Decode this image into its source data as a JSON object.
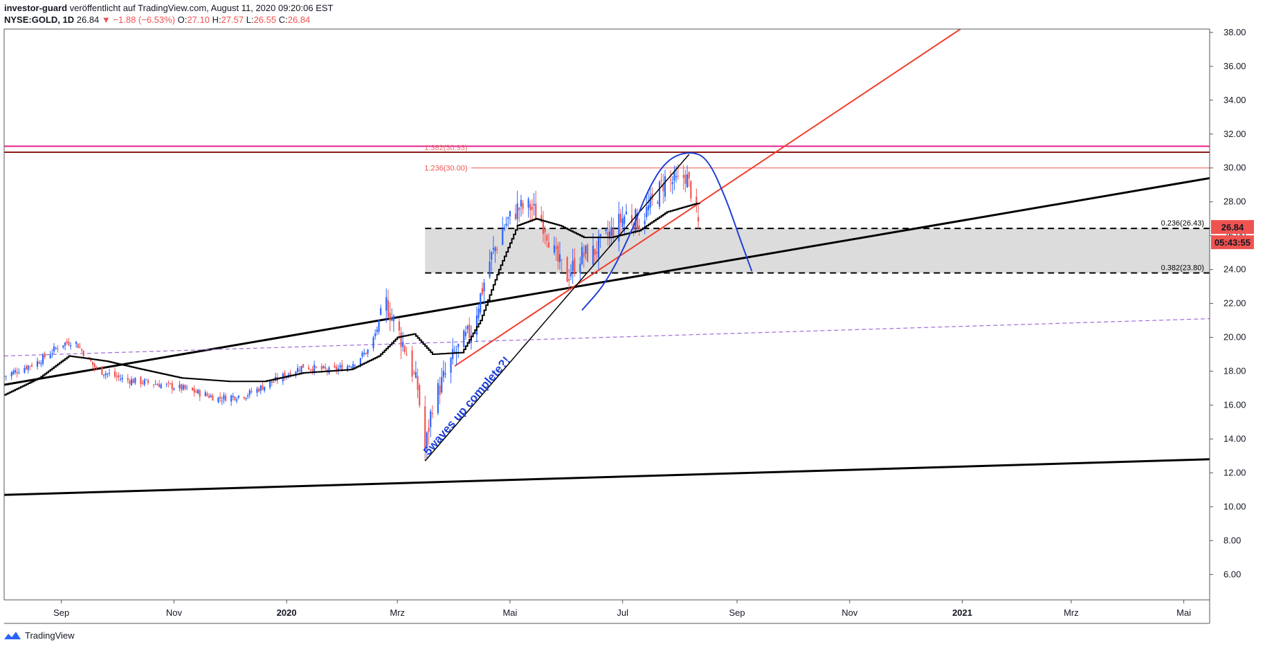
{
  "header": {
    "publisher": "investor-guard",
    "published_text": " veröffentlicht auf TradingView.com, August 11, 2020 09:20:06 EST",
    "symbol": "NYSE:GOLD, 1D",
    "last": "26.84",
    "change": "▼ −1.88 (−6.53%)",
    "o_label": "O:",
    "o_val": "27.10",
    "h_label": "H:",
    "h_val": "27.57",
    "l_label": "L:",
    "l_val": "26.55",
    "c_label": "C:",
    "c_val": "26.84"
  },
  "price_badge": "26.84",
  "countdown_badge": "05:43:55",
  "annotation_text": "5waves up complete?!",
  "footer_brand": "TradingView",
  "colors": {
    "up": "#2962ff",
    "down": "#ef5350",
    "trendline": "#f23b2c",
    "arc": "#1e3fd8",
    "magenta": "#e91e8c",
    "purple_dash": "#9c6bd8",
    "zone": "#dcdcdc"
  },
  "chart_data": {
    "type": "candlestick",
    "y_axis": {
      "min": 4.5,
      "max": 38.2,
      "ticks": [
        "38.00",
        "36.00",
        "34.00",
        "32.00",
        "30.00",
        "28.00",
        "26.00",
        "24.00",
        "22.00",
        "20.00",
        "18.00",
        "16.00",
        "14.00",
        "12.00",
        "10.00",
        "8.00",
        "6.00"
      ]
    },
    "x_axis": {
      "ticks": [
        {
          "label": "Sep",
          "date": "2019-09-01",
          "bold": false
        },
        {
          "label": "Nov",
          "date": "2019-11-01",
          "bold": false
        },
        {
          "label": "2020",
          "date": "2020-01-01",
          "bold": true
        },
        {
          "label": "Mrz",
          "date": "2020-03-01",
          "bold": false
        },
        {
          "label": "Mai",
          "date": "2020-05-01",
          "bold": false
        },
        {
          "label": "Jul",
          "date": "2020-07-01",
          "bold": false
        },
        {
          "label": "Sep",
          "date": "2020-09-01",
          "bold": false
        },
        {
          "label": "Nov",
          "date": "2020-11-01",
          "bold": false
        },
        {
          "label": "2021",
          "date": "2021-01-01",
          "bold": true
        },
        {
          "label": "Mrz",
          "date": "2021-03-01",
          "bold": false
        },
        {
          "label": "Mai",
          "date": "2021-05-01",
          "bold": false
        }
      ]
    },
    "price_path": [
      [
        "2019-08-01",
        17.7
      ],
      [
        "2019-08-20",
        18.6
      ],
      [
        "2019-09-01",
        19.6
      ],
      [
        "2019-09-08",
        19.8
      ],
      [
        "2019-09-20",
        18.1
      ],
      [
        "2019-10-05",
        17.5
      ],
      [
        "2019-10-20",
        17.3
      ],
      [
        "2019-11-05",
        17.0
      ],
      [
        "2019-11-25",
        16.4
      ],
      [
        "2019-12-10",
        16.6
      ],
      [
        "2019-12-25",
        17.4
      ],
      [
        "2020-01-10",
        18.3
      ],
      [
        "2020-01-25",
        18.0
      ],
      [
        "2020-02-05",
        18.4
      ],
      [
        "2020-02-15",
        19.3
      ],
      [
        "2020-02-24",
        22.0
      ],
      [
        "2020-03-05",
        19.4
      ],
      [
        "2020-03-12",
        17.0
      ],
      [
        "2020-03-16",
        13.3
      ],
      [
        "2020-03-20",
        16.1
      ],
      [
        "2020-04-01",
        19.0
      ],
      [
        "2020-04-10",
        20.4
      ],
      [
        "2020-04-20",
        24.5
      ],
      [
        "2020-04-28",
        26.6
      ],
      [
        "2020-05-05",
        27.6
      ],
      [
        "2020-05-12",
        27.7
      ],
      [
        "2020-05-20",
        26.6
      ],
      [
        "2020-05-26",
        24.6
      ],
      [
        "2020-06-01",
        23.6
      ],
      [
        "2020-06-08",
        24.8
      ],
      [
        "2020-06-15",
        25.0
      ],
      [
        "2020-06-25",
        26.2
      ],
      [
        "2020-07-03",
        27.3
      ],
      [
        "2020-07-10",
        26.8
      ],
      [
        "2020-07-17",
        27.9
      ],
      [
        "2020-07-24",
        29.3
      ],
      [
        "2020-07-31",
        29.1
      ],
      [
        "2020-08-04",
        29.6
      ],
      [
        "2020-08-07",
        28.7
      ],
      [
        "2020-08-11",
        26.84
      ]
    ],
    "moving_average": [
      [
        "2019-08-01",
        16.6
      ],
      [
        "2019-08-20",
        17.6
      ],
      [
        "2019-09-05",
        18.9
      ],
      [
        "2019-09-25",
        18.6
      ],
      [
        "2019-10-15",
        18.1
      ],
      [
        "2019-11-05",
        17.6
      ],
      [
        "2019-12-01",
        17.4
      ],
      [
        "2019-12-20",
        17.4
      ],
      [
        "2020-01-10",
        17.9
      ],
      [
        "2020-02-05",
        18.1
      ],
      [
        "2020-02-20",
        18.9
      ],
      [
        "2020-03-01",
        20.0
      ],
      [
        "2020-03-10",
        20.2
      ],
      [
        "2020-03-20",
        19.0
      ],
      [
        "2020-04-05",
        19.1
      ],
      [
        "2020-04-15",
        21.0
      ],
      [
        "2020-04-25",
        24.0
      ],
      [
        "2020-05-05",
        26.6
      ],
      [
        "2020-05-15",
        27.0
      ],
      [
        "2020-05-28",
        26.6
      ],
      [
        "2020-06-10",
        25.9
      ],
      [
        "2020-06-25",
        25.9
      ],
      [
        "2020-07-10",
        26.3
      ],
      [
        "2020-07-25",
        27.4
      ],
      [
        "2020-08-10",
        27.9
      ],
      [
        "2020-08-12",
        27.9
      ]
    ],
    "fib_levels": [
      {
        "label": "1.382(30.93)",
        "value": 30.93,
        "color": "#8b1a1a"
      },
      {
        "label": "1.236(30.00)",
        "value": 30.0,
        "color": "#ef5350"
      },
      {
        "label": "0.236(26.43)",
        "value": 26.43,
        "color": "#000000"
      },
      {
        "label": "0.382(23.80)",
        "value": 23.8,
        "color": "#000000"
      }
    ],
    "zone": {
      "from": "2020-03-16",
      "top": 26.43,
      "bottom": 23.8
    },
    "magenta_level": 31.28,
    "channel_lines": [
      {
        "points": [
          [
            "2019-08-01",
            17.2
          ],
          [
            "2021-05-15",
            29.4
          ]
        ],
        "color": "#000000"
      },
      {
        "points": [
          [
            "2019-08-01",
            10.7
          ],
          [
            "2021-05-15",
            12.8
          ]
        ],
        "color": "#000000"
      }
    ],
    "purple_dashed": [
      [
        "2019-08-01",
        18.9
      ],
      [
        "2021-05-15",
        21.1
      ]
    ],
    "red_trendline": [
      [
        "2020-04-01",
        18.3
      ],
      [
        "2020-12-31",
        38.2
      ]
    ],
    "wave_line": [
      [
        "2020-03-16",
        12.7
      ],
      [
        "2020-08-06",
        30.8
      ]
    ],
    "blue_arc": [
      [
        "2020-06-09",
        21.6
      ],
      [
        "2020-06-22",
        23.2
      ],
      [
        "2020-07-05",
        26.0
      ],
      [
        "2020-07-15",
        28.8
      ],
      [
        "2020-07-25",
        30.5
      ],
      [
        "2020-08-06",
        31.0
      ],
      [
        "2020-08-16",
        30.6
      ],
      [
        "2020-08-26",
        28.2
      ],
      [
        "2020-09-02",
        26.0
      ],
      [
        "2020-09-09",
        23.9
      ]
    ]
  }
}
